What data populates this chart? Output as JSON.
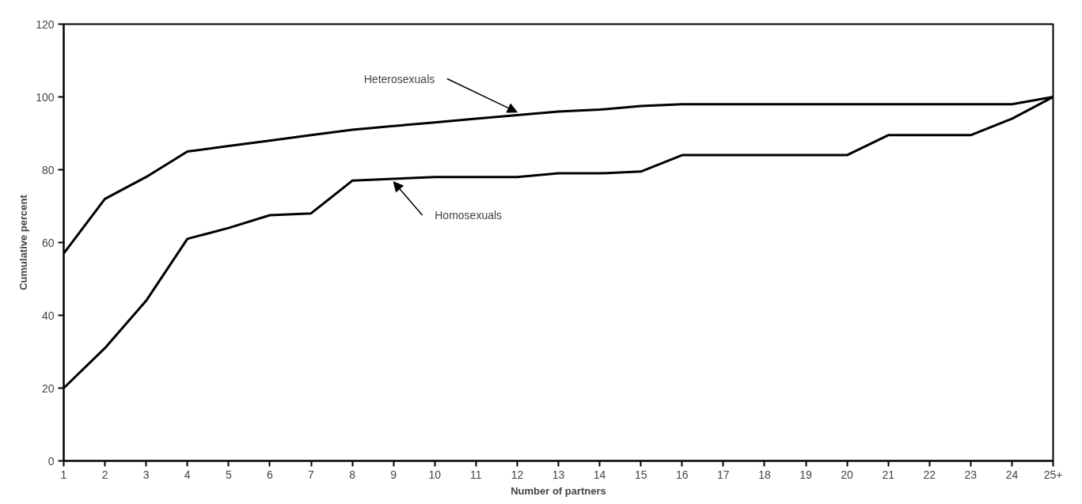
{
  "chart_data": {
    "type": "line",
    "xlabel": "Number of partners",
    "ylabel": "Cumulative percent",
    "x": [
      1,
      2,
      3,
      4,
      5,
      6,
      7,
      8,
      9,
      10,
      11,
      12,
      13,
      14,
      15,
      16,
      17,
      18,
      19,
      20,
      21,
      22,
      23,
      24,
      25
    ],
    "xlim": [
      1,
      25
    ],
    "xticks": [
      1,
      2,
      3,
      4,
      5,
      6,
      7,
      8,
      9,
      10,
      11,
      12,
      13,
      14,
      15,
      16,
      17,
      18,
      19,
      20,
      21,
      22,
      23,
      24,
      {
        "value": 25,
        "label": "25+"
      }
    ],
    "ylim": [
      0,
      120
    ],
    "yticks": [
      0,
      20,
      40,
      60,
      80,
      100,
      120
    ],
    "grid": false,
    "marker": "none",
    "line_style": "solid",
    "series": [
      {
        "name": "Heterosexuals",
        "color": "#000000",
        "values": [
          57,
          72,
          78,
          85,
          86.5,
          88,
          89.5,
          91,
          92,
          93,
          94,
          95,
          96,
          96.5,
          97.5,
          98,
          98,
          98,
          98,
          98,
          98,
          98,
          98,
          98,
          100
        ]
      },
      {
        "name": "Homosexuals",
        "color": "#000000",
        "values": [
          20,
          31,
          44,
          61,
          64,
          67.5,
          68,
          77,
          77.5,
          78,
          78,
          78,
          79,
          79,
          79.5,
          84,
          84,
          84,
          84,
          84,
          89.5,
          89.5,
          89.5,
          94,
          100
        ]
      }
    ]
  }
}
